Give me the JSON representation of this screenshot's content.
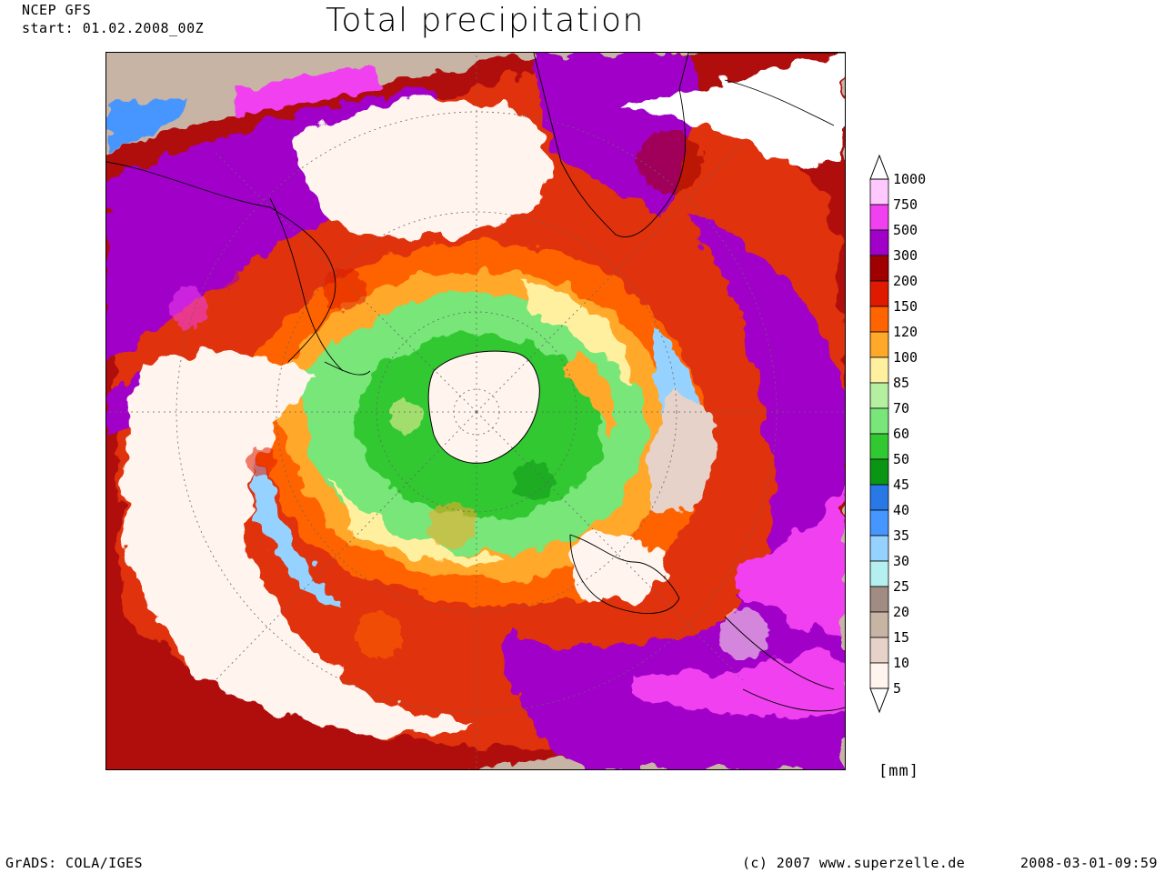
{
  "header": {
    "model": "NCEP GFS",
    "start": "start: 01.02.2008_00Z",
    "title": "Total precipitation"
  },
  "map": {
    "projection": "south-polar-stereographic",
    "field": "total precipitation",
    "region_labels": []
  },
  "legend": {
    "levels": [
      "1000",
      "750",
      "500",
      "300",
      "200",
      "150",
      "120",
      "100",
      "85",
      "70",
      "60",
      "50",
      "45",
      "40",
      "35",
      "30",
      "25",
      "20",
      "15",
      "10",
      "5"
    ],
    "colors": [
      "#ffc8ff",
      "#f040f0",
      "#a000c8",
      "#a00000",
      "#e01a00",
      "#ff6400",
      "#ffa82a",
      "#fff0a0",
      "#b4f0a0",
      "#78e678",
      "#32c832",
      "#0a9614",
      "#2878e6",
      "#4696ff",
      "#96d2ff",
      "#b4f0f0",
      "#a08c82",
      "#c8b4a5",
      "#e6d2c8",
      "#fff5ee"
    ],
    "unit": "[mm]"
  },
  "footer": {
    "software": "GrADS: COLA/IGES",
    "copyright": "(c) 2007 www.superzelle.de",
    "timestamp": "2008-03-01-09:59"
  }
}
